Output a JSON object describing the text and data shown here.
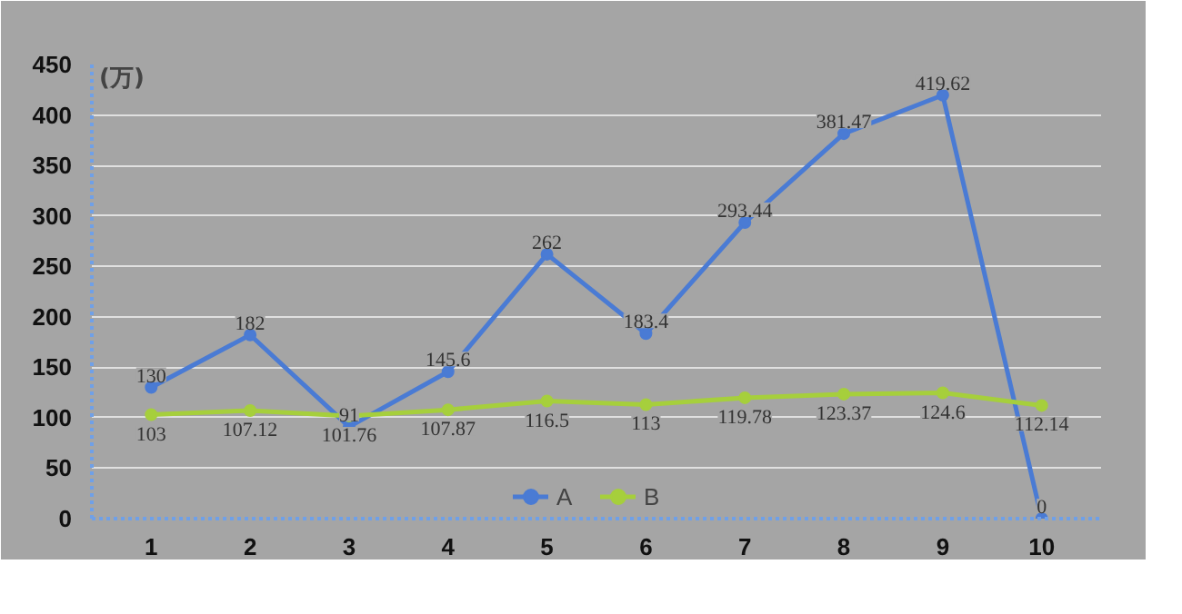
{
  "chart_data": {
    "type": "line",
    "ylabel": "(万)",
    "categories": [
      "1",
      "2",
      "3",
      "4",
      "5",
      "6",
      "7",
      "8",
      "9",
      "10"
    ],
    "series": [
      {
        "name": "A",
        "color": "#4a7bd4",
        "values": [
          130,
          182,
          91,
          145.6,
          262,
          183.4,
          293.44,
          381.47,
          419.62,
          0
        ]
      },
      {
        "name": "B",
        "color": "#a6cf3c",
        "values": [
          103,
          107.12,
          101.76,
          107.87,
          116.5,
          113,
          119.78,
          123.37,
          124.6,
          112.14
        ]
      }
    ],
    "ylim": [
      0,
      450
    ],
    "yticks": [
      0,
      50,
      100,
      150,
      200,
      250,
      300,
      350,
      400,
      450
    ],
    "grid": "y",
    "legend": "bottom",
    "marker": "circle",
    "line_style": "solid",
    "data_labels": true
  }
}
